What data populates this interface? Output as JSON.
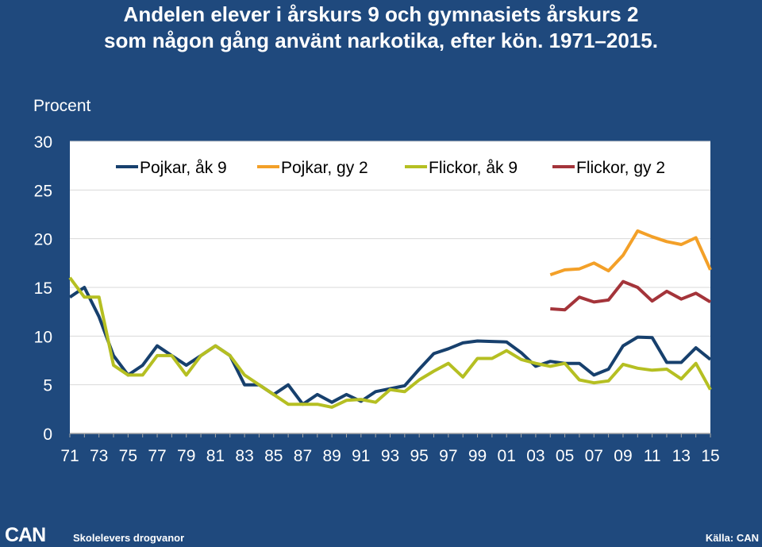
{
  "chart_data": {
    "type": "line",
    "title_line1": "Andelen elever i årskurs 9 och gymnasiets årskurs 2",
    "title_line2": "som någon gång använt narkotika, efter kön. 1971–2015.",
    "unit_label": "Procent",
    "x_start": 1971,
    "x_end": 2015,
    "x_tick_labels": [
      "71",
      "73",
      "75",
      "77",
      "79",
      "81",
      "83",
      "85",
      "87",
      "89",
      "91",
      "93",
      "95",
      "97",
      "99",
      "01",
      "03",
      "05",
      "07",
      "09",
      "11",
      "13",
      "15"
    ],
    "ylim": [
      0,
      30
    ],
    "y_ticks": [
      0,
      5,
      10,
      15,
      20,
      25,
      30
    ],
    "grid": true,
    "legend_placement": "top",
    "series": [
      {
        "name": "Pojkar, åk 9",
        "color": "#17406d",
        "x": [
          1971,
          1972,
          1973,
          1974,
          1975,
          1976,
          1977,
          1978,
          1979,
          1980,
          1981,
          1982,
          1983,
          1984,
          1985,
          1986,
          1987,
          1988,
          1989,
          1990,
          1991,
          1992,
          1993,
          1994,
          1995,
          1996,
          1997,
          1998,
          1999,
          2000,
          2001,
          2002,
          2003,
          2004,
          2005,
          2006,
          2007,
          2008,
          2009,
          2010,
          2011,
          2012,
          2013,
          2014,
          2015
        ],
        "values": [
          14,
          15,
          12,
          8,
          6,
          7,
          9,
          8,
          7,
          8,
          9,
          8,
          5,
          5,
          4,
          5,
          3,
          4,
          3.2,
          4,
          3.3,
          4.3,
          4.6,
          4.9,
          6.6,
          8.2,
          8.7,
          9.3,
          9.5,
          9.45,
          9.4,
          8.3,
          6.9,
          7.4,
          7.2,
          7.2,
          6,
          6.6,
          9,
          9.9,
          9.85,
          7.3,
          7.3,
          8.8,
          7.6
        ]
      },
      {
        "name": "Pojkar, gy 2",
        "color": "#f3a028",
        "x": [
          2004,
          2005,
          2006,
          2007,
          2008,
          2009,
          2010,
          2011,
          2012,
          2013,
          2014,
          2015
        ],
        "values": [
          16.3,
          16.8,
          16.9,
          17.5,
          16.7,
          18.3,
          20.8,
          20.2,
          19.7,
          19.4,
          20.1,
          16.8
        ]
      },
      {
        "name": "Flickor, åk 9",
        "color": "#b5bf22",
        "x": [
          1971,
          1972,
          1973,
          1974,
          1975,
          1976,
          1977,
          1978,
          1979,
          1980,
          1981,
          1982,
          1983,
          1984,
          1985,
          1986,
          1987,
          1988,
          1989,
          1990,
          1991,
          1992,
          1993,
          1994,
          1995,
          1996,
          1997,
          1998,
          1999,
          2000,
          2001,
          2002,
          2003,
          2004,
          2005,
          2006,
          2007,
          2008,
          2009,
          2010,
          2011,
          2012,
          2013,
          2014,
          2015
        ],
        "values": [
          16,
          14,
          14,
          7,
          6,
          6,
          8,
          8,
          6,
          8,
          9,
          8,
          6,
          5,
          4,
          3,
          3,
          3,
          2.7,
          3.4,
          3.5,
          3.2,
          4.5,
          4.3,
          5.5,
          6.4,
          7.2,
          5.8,
          7.7,
          7.7,
          8.5,
          7.6,
          7.2,
          6.9,
          7.2,
          5.5,
          5.2,
          5.4,
          7.1,
          6.7,
          6.5,
          6.6,
          5.6,
          7.2,
          4.5
        ]
      },
      {
        "name": "Flickor, gy 2",
        "color": "#a4343a",
        "x": [
          2004,
          2005,
          2006,
          2007,
          2008,
          2009,
          2010,
          2011,
          2012,
          2013,
          2014,
          2015
        ],
        "values": [
          12.8,
          12.7,
          14,
          13.5,
          13.7,
          15.6,
          15,
          13.6,
          14.6,
          13.8,
          14.4,
          13.5
        ]
      }
    ]
  },
  "footer": {
    "logo": "CAN",
    "subtitle": "Skolelevers drogvanor",
    "source": "Källa: CAN"
  }
}
